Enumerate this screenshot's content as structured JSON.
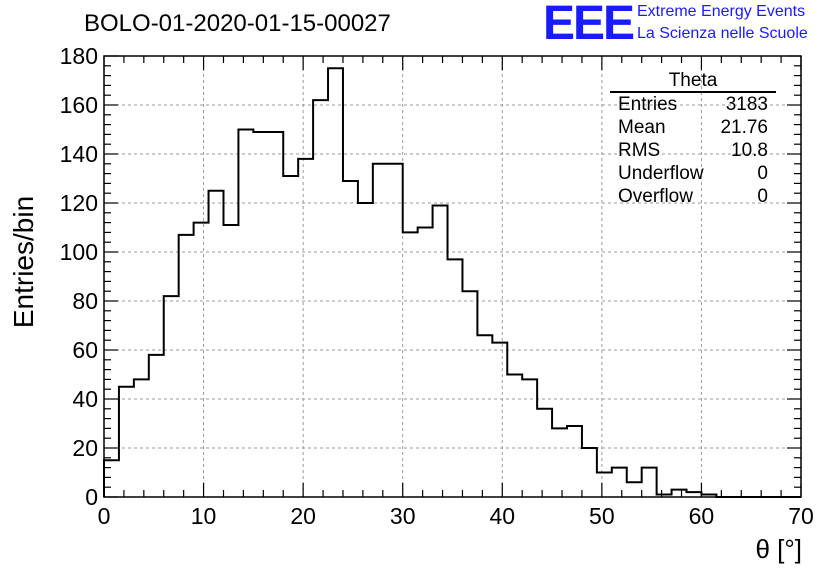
{
  "header": {
    "title": "BOLO-01-2020-01-15-00027",
    "logo_text": "EEE",
    "logo_line1": "Extreme Energy Events",
    "logo_line2": "La Scienza nelle Scuole",
    "brand_color": "#1a1aff"
  },
  "stats": {
    "title": "Theta",
    "rows": [
      {
        "label": "Entries",
        "value": "3183"
      },
      {
        "label": "Mean",
        "value": "21.76"
      },
      {
        "label": "RMS",
        "value": "10.8"
      },
      {
        "label": "Underflow",
        "value": "0"
      },
      {
        "label": "Overflow",
        "value": "0"
      }
    ]
  },
  "chart_data": {
    "type": "bar",
    "xlabel": "θ [°]",
    "ylabel": "Entries/bin",
    "xlim": [
      0,
      70
    ],
    "ylim": [
      0,
      180
    ],
    "x_ticks": [
      "0",
      "10",
      "20",
      "30",
      "40",
      "50",
      "60",
      "70"
    ],
    "y_ticks": [
      "0",
      "20",
      "40",
      "60",
      "80",
      "100",
      "120",
      "140",
      "160",
      "180"
    ],
    "grid": true,
    "bin_width": 1.5,
    "bin_edges_start": 0,
    "values": [
      15,
      45,
      48,
      58,
      82,
      107,
      112,
      125,
      111,
      150,
      149,
      149,
      131,
      138,
      162,
      175,
      129,
      120,
      136,
      136,
      108,
      110,
      119,
      97,
      84,
      66,
      63,
      50,
      48,
      36,
      28,
      29,
      20,
      10,
      12,
      6,
      12,
      1,
      3,
      2,
      1,
      0,
      0,
      0,
      0,
      0,
      0
    ]
  }
}
